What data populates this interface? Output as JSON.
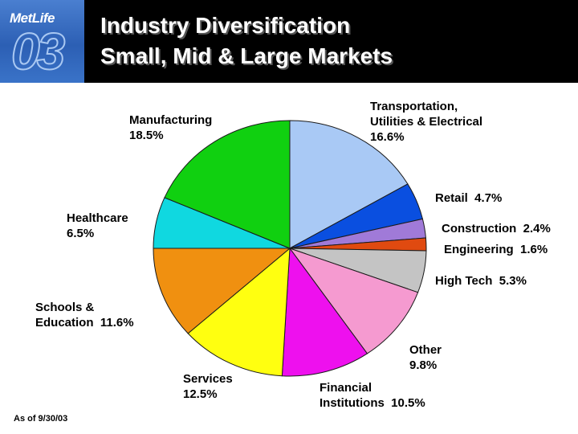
{
  "header": {
    "brand": "MetLife",
    "badge": "03",
    "title_line1": "Industry Diversification",
    "title_line2": "Small, Mid & Large Markets"
  },
  "footnote": "As of 9/30/03",
  "chart_data": {
    "type": "pie",
    "unit": "%",
    "slices": [
      {
        "label_lines": [
          "Transportation,",
          "Utilities & Electrical"
        ],
        "value_text": "16.6%",
        "value": 16.6,
        "color": "#a9c9f5"
      },
      {
        "label_lines": [
          "Retail"
        ],
        "value_text": "4.7%",
        "value": 4.7,
        "color": "#0a4fe0"
      },
      {
        "label_lines": [
          "Construction"
        ],
        "value_text": "2.4%",
        "value": 2.4,
        "color": "#a07ad8"
      },
      {
        "label_lines": [
          "Engineering"
        ],
        "value_text": "1.6%",
        "value": 1.6,
        "color": "#e04a10"
      },
      {
        "label_lines": [
          "High Tech"
        ],
        "value_text": "5.3%",
        "value": 5.3,
        "color": "#c4c4c4"
      },
      {
        "label_lines": [
          "Other"
        ],
        "value_text": "9.8%",
        "value": 9.8,
        "color": "#f59ad0"
      },
      {
        "label_lines": [
          "Financial",
          "Institutions"
        ],
        "value_text": "10.5%",
        "value": 10.5,
        "color": "#ee10ee"
      },
      {
        "label_lines": [
          "Services"
        ],
        "value_text": "12.5%",
        "value": 12.5,
        "color": "#ffff10"
      },
      {
        "label_lines": [
          "Schools &",
          "Education"
        ],
        "value_text": "11.6%",
        "value": 11.6,
        "color": "#f09010"
      },
      {
        "label_lines": [
          "Healthcare"
        ],
        "value_text": "6.5%",
        "value": 6.5,
        "color": "#10d8e0"
      },
      {
        "label_lines": [
          "Manufacturing"
        ],
        "value_text": "18.5%",
        "value": 18.5,
        "color": "#10d010"
      }
    ]
  }
}
